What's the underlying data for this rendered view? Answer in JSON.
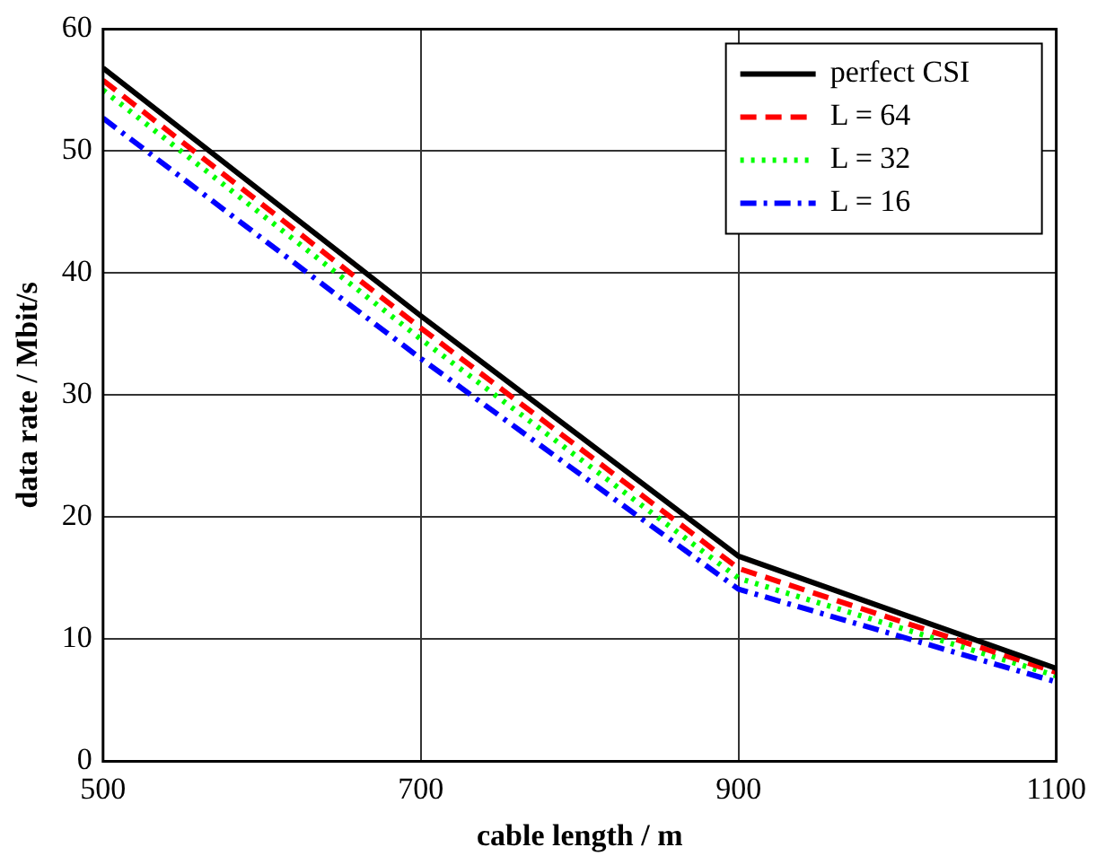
{
  "chart_data": {
    "type": "line",
    "xlabel": "cable length / m",
    "ylabel": "data rate / Mbit/s",
    "x": [
      500,
      700,
      900,
      1100
    ],
    "series": [
      {
        "name": "perfect CSI",
        "color": "#000000",
        "line_style": "solid",
        "values": [
          56.8,
          36.5,
          16.8,
          7.6
        ]
      },
      {
        "name": "L = 64",
        "color": "#ff0000",
        "line_style": "dashed",
        "values": [
          55.8,
          35.5,
          15.8,
          7.3
        ]
      },
      {
        "name": "L = 32",
        "color": "#00ff00",
        "line_style": "dotted",
        "values": [
          55,
          34.6,
          15,
          7
        ]
      },
      {
        "name": "L = 16",
        "color": "#0000ff",
        "line_style": "dashdot",
        "values": [
          52.7,
          33,
          14.1,
          6.5
        ]
      }
    ],
    "xlim": [
      500,
      1100
    ],
    "xticks": [
      500,
      700,
      900,
      1100
    ],
    "ylim": [
      0,
      60
    ],
    "yticks": [
      0,
      10,
      20,
      30,
      40,
      50,
      60
    ],
    "grid": true,
    "legend": "top right",
    "marker": "none"
  }
}
